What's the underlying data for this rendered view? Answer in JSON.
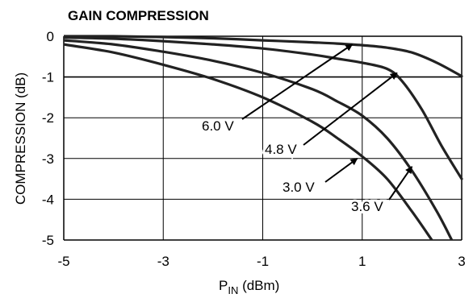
{
  "chart_data": {
    "type": "line",
    "title": "GAIN COMPRESSION",
    "xlabel_main": "P",
    "xlabel_sub": "IN",
    "xlabel_unit": " (dBm)",
    "ylabel": "COMPRESSION (dB)",
    "xlim": [
      -5,
      3
    ],
    "ylim": [
      -5,
      0
    ],
    "x_ticks": [
      -5,
      -3,
      -1,
      1,
      3
    ],
    "x_tick_labels": [
      "-5",
      "-3",
      "-1",
      "1",
      "3"
    ],
    "y_ticks": [
      0,
      -1,
      -2,
      -3,
      -4,
      -5
    ],
    "y_tick_labels": [
      "0",
      "-1",
      "-2",
      "-3",
      "-4",
      "-5"
    ],
    "grid": true,
    "colors": {
      "line": "#222222",
      "grid": "#000000",
      "background": "#ffffff"
    },
    "series": [
      {
        "name": "6.0 V",
        "x": [
          -5,
          -4,
          -3,
          -2,
          -1,
          0,
          0.5,
          1,
          1.5,
          2,
          2.5,
          3
        ],
        "y": [
          0,
          0,
          -0.02,
          -0.05,
          -0.1,
          -0.15,
          -0.18,
          -0.22,
          -0.28,
          -0.4,
          -0.65,
          -0.98
        ]
      },
      {
        "name": "4.8 V",
        "x": [
          -5,
          -4,
          -3,
          -2,
          -1,
          0,
          0.5,
          1,
          1.5,
          1.8,
          2.2,
          2.6,
          3
        ],
        "y": [
          -0.03,
          -0.06,
          -0.12,
          -0.2,
          -0.3,
          -0.45,
          -0.55,
          -0.65,
          -0.8,
          -1.1,
          -1.8,
          -2.7,
          -3.5
        ]
      },
      {
        "name": "3.6 V",
        "x": [
          -5,
          -4,
          -3,
          -2,
          -1,
          0,
          0.5,
          1,
          1.5,
          2,
          2.5,
          2.8
        ],
        "y": [
          -0.1,
          -0.2,
          -0.38,
          -0.6,
          -0.9,
          -1.3,
          -1.6,
          -1.95,
          -2.5,
          -3.3,
          -4.3,
          -5
        ]
      },
      {
        "name": "3.0 V",
        "x": [
          -5,
          -4,
          -3,
          -2,
          -1,
          0,
          0.5,
          1,
          1.5,
          2,
          2.4
        ],
        "y": [
          -0.2,
          -0.4,
          -0.7,
          -1.05,
          -1.5,
          -2.1,
          -2.5,
          -2.95,
          -3.5,
          -4.3,
          -5
        ]
      }
    ],
    "annotations": [
      {
        "label": "6.0 V",
        "arrow_to": [
          0.8,
          -0.2
        ]
      },
      {
        "label": "4.8 V",
        "arrow_to": [
          1.7,
          -0.9
        ]
      },
      {
        "label": "3.0 V",
        "arrow_to": [
          0.9,
          -3.0
        ]
      },
      {
        "label": "3.6 V",
        "arrow_to": [
          2.0,
          -3.2
        ]
      }
    ]
  }
}
